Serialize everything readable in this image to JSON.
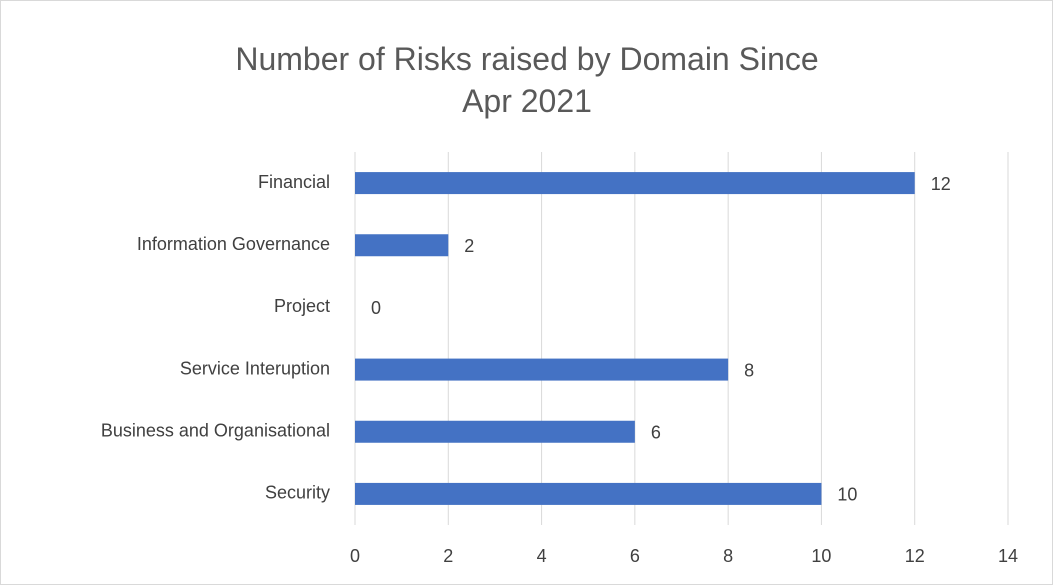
{
  "chart_data": {
    "type": "bar",
    "orientation": "horizontal",
    "title": "Number of Risks raised by Domain Since Apr 2021",
    "categories": [
      "Financial",
      "Information Governance",
      "Project",
      "Service Interuption",
      "Business and Organisational",
      "Security"
    ],
    "values": [
      12,
      2,
      0,
      8,
      6,
      10
    ],
    "color": "#4472c4",
    "xlim": [
      0,
      14
    ],
    "xticks": [
      0,
      2,
      4,
      6,
      8,
      10,
      12,
      14
    ],
    "grid": true
  }
}
